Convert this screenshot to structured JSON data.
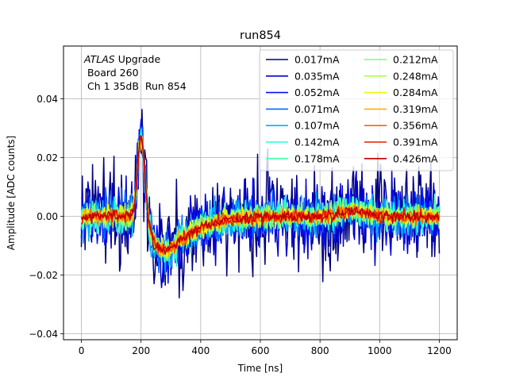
{
  "chart_data": {
    "type": "line",
    "title": "run854",
    "xlabel": "Time [ns]",
    "ylabel": "Amplitude [ADC counts]",
    "xlim": [
      -60,
      1260
    ],
    "ylim": [
      -0.042,
      0.058
    ],
    "xticks": [
      0,
      200,
      400,
      600,
      800,
      1000,
      1200
    ],
    "xtick_labels": [
      "0",
      "200",
      "400",
      "600",
      "800",
      "1000",
      "1200"
    ],
    "yticks": [
      -0.04,
      -0.02,
      0.0,
      0.02,
      0.04
    ],
    "ytick_labels": [
      "−0.04",
      "−0.02",
      "0.00",
      "0.02",
      "0.04"
    ],
    "grid": true,
    "legend_position": "top-right",
    "legend_columns": 2,
    "annotation": {
      "experiment": "ATLAS",
      "suffix": " Upgrade",
      "line2": " Board 260",
      "line3": " Ch 1 35dB  Run 854"
    },
    "pulse_shape": {
      "peak_time_ns": 200,
      "peak_amplitude": 0.027,
      "undershoot_time_ns": 275,
      "undershoot_amplitude": -0.011,
      "secondary_bump_time_ns": 915,
      "secondary_bump_amplitude": 0.002
    },
    "series": [
      {
        "name": "0.017mA",
        "color": "#00007f",
        "noise_sigma": 0.0125
      },
      {
        "name": "0.035mA",
        "color": "#0000d0",
        "noise_sigma": 0.0085
      },
      {
        "name": "0.052mA",
        "color": "#0010ff",
        "noise_sigma": 0.0065
      },
      {
        "name": "0.071mA",
        "color": "#0068ff",
        "noise_sigma": 0.0052
      },
      {
        "name": "0.107mA",
        "color": "#00b0ff",
        "noise_sigma": 0.0044
      },
      {
        "name": "0.142mA",
        "color": "#26ffd0",
        "noise_sigma": 0.0038
      },
      {
        "name": "0.178mA",
        "color": "#4dffaa",
        "noise_sigma": 0.0033
      },
      {
        "name": "0.212mA",
        "color": "#7dff7a",
        "noise_sigma": 0.0029
      },
      {
        "name": "0.248mA",
        "color": "#aaff4d",
        "noise_sigma": 0.0026
      },
      {
        "name": "0.284mA",
        "color": "#f0f500",
        "noise_sigma": 0.0023
      },
      {
        "name": "0.319mA",
        "color": "#ffb000",
        "noise_sigma": 0.002
      },
      {
        "name": "0.356mA",
        "color": "#ff6400",
        "noise_sigma": 0.0018
      },
      {
        "name": "0.391mA",
        "color": "#e81800",
        "noise_sigma": 0.0016
      },
      {
        "name": "0.426mA",
        "color": "#c00000",
        "noise_sigma": 0.0014
      }
    ]
  }
}
